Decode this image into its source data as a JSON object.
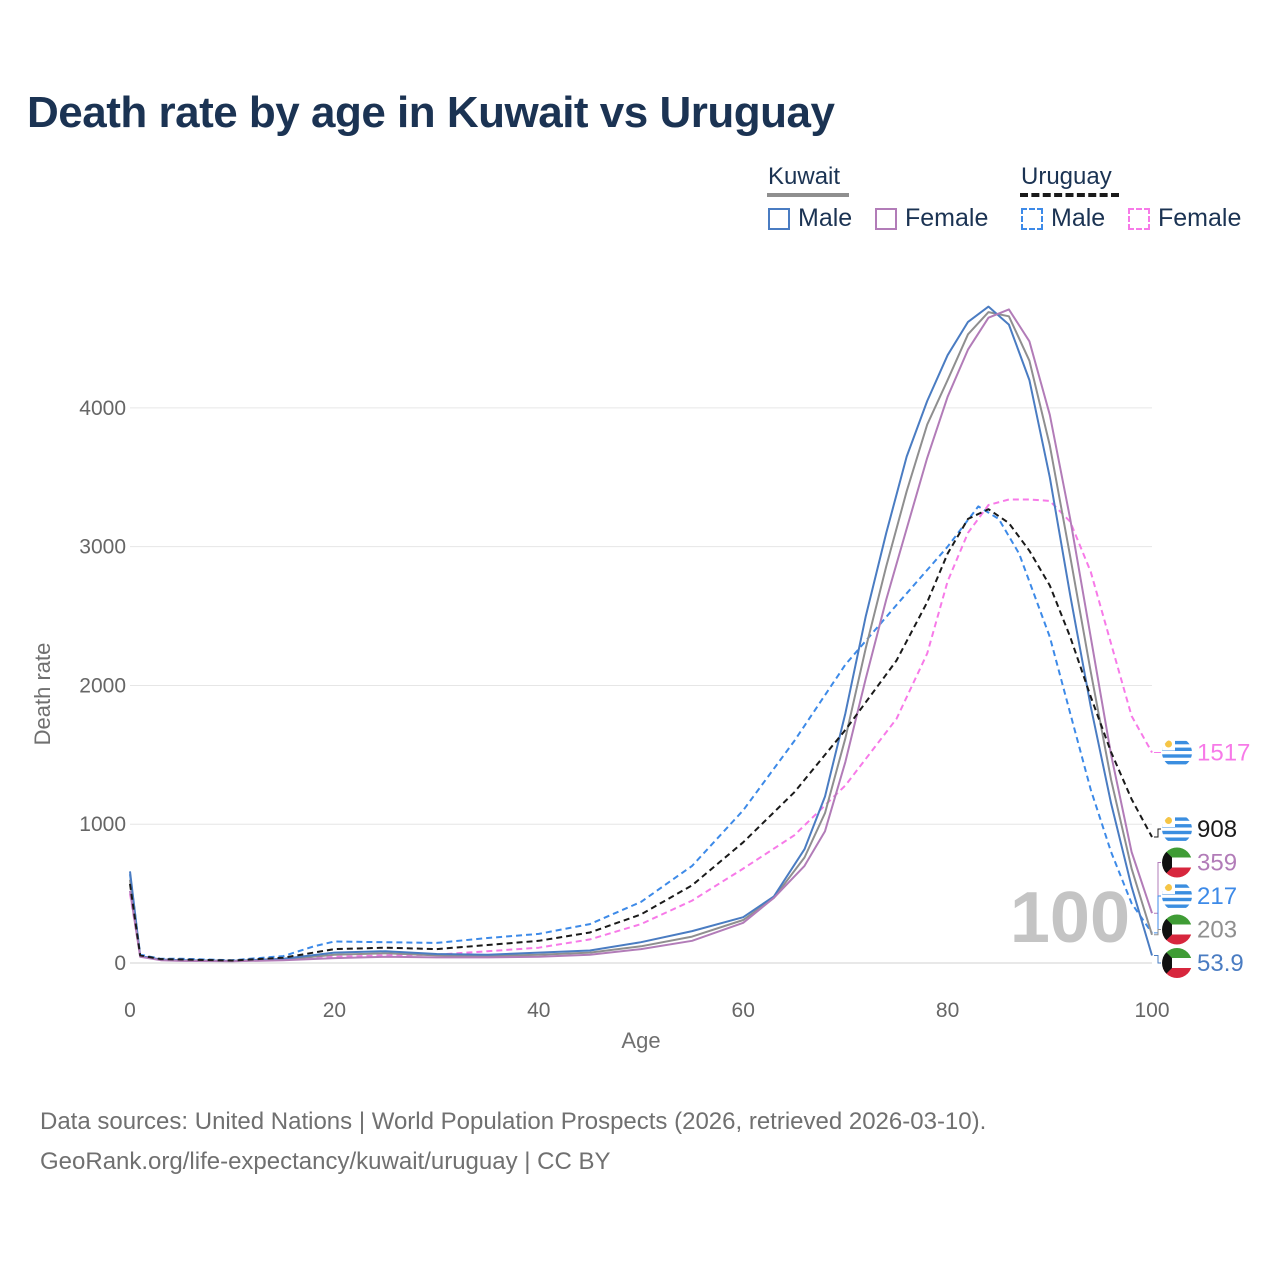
{
  "title": "Death rate by age in Kuwait vs Uruguay",
  "legend": {
    "groups": [
      {
        "name": "Kuwait",
        "line_style": "solid",
        "line_color": "#8f8f8f"
      },
      {
        "name": "Uruguay",
        "line_style": "dashed",
        "line_color": "#1a1a1a"
      }
    ],
    "items": [
      {
        "label": "Male",
        "group": "Kuwait",
        "color": "#4a7cc2",
        "style": "solid"
      },
      {
        "label": "Female",
        "group": "Kuwait",
        "color": "#b27cb8",
        "style": "solid"
      },
      {
        "label": "Male",
        "group": "Uruguay",
        "color": "#3d8ae8",
        "style": "dashed"
      },
      {
        "label": "Female",
        "group": "Uruguay",
        "color": "#f77ae8",
        "style": "dashed"
      }
    ]
  },
  "footer": {
    "line1": "Data sources: United Nations | World Population Prospects (2026, retrieved 2026-03-10).",
    "line2": "GeoRank.org/life-expectancy/kuwait/uruguay | CC BY"
  },
  "chart_data": {
    "type": "line",
    "title": "Death rate by age in Kuwait vs Uruguay",
    "xlabel": "Age",
    "ylabel": "Death rate",
    "xlim": [
      0,
      100
    ],
    "ylim": [
      0,
      4900
    ],
    "xticks": [
      0,
      20,
      40,
      60,
      80,
      100
    ],
    "yticks": [
      0,
      1000,
      2000,
      3000,
      4000
    ],
    "ytick_labels": [
      "0",
      "1000",
      "2000",
      "3000",
      "4000"
    ],
    "grid": true,
    "watermark": "100",
    "series": [
      {
        "name": "Kuwait Male",
        "country": "Kuwait",
        "sex": "Male",
        "color": "#4a7cc2",
        "style": "solid",
        "end_label": "53.9",
        "points": [
          [
            0,
            660
          ],
          [
            1,
            50
          ],
          [
            3,
            25
          ],
          [
            5,
            20
          ],
          [
            10,
            15
          ],
          [
            15,
            30
          ],
          [
            20,
            75
          ],
          [
            25,
            85
          ],
          [
            30,
            65
          ],
          [
            35,
            60
          ],
          [
            40,
            75
          ],
          [
            45,
            90
          ],
          [
            50,
            150
          ],
          [
            55,
            230
          ],
          [
            60,
            330
          ],
          [
            63,
            480
          ],
          [
            66,
            820
          ],
          [
            68,
            1200
          ],
          [
            70,
            1800
          ],
          [
            72,
            2500
          ],
          [
            74,
            3100
          ],
          [
            76,
            3650
          ],
          [
            78,
            4050
          ],
          [
            80,
            4380
          ],
          [
            82,
            4620
          ],
          [
            84,
            4730
          ],
          [
            86,
            4600
          ],
          [
            88,
            4200
          ],
          [
            90,
            3500
          ],
          [
            92,
            2650
          ],
          [
            94,
            1850
          ],
          [
            96,
            1150
          ],
          [
            98,
            550
          ],
          [
            100,
            54
          ]
        ]
      },
      {
        "name": "Kuwait Female",
        "country": "Kuwait",
        "sex": "Female",
        "color": "#b27cb8",
        "style": "solid",
        "end_label": "359",
        "points": [
          [
            0,
            520
          ],
          [
            1,
            45
          ],
          [
            3,
            20
          ],
          [
            5,
            15
          ],
          [
            10,
            12
          ],
          [
            15,
            20
          ],
          [
            20,
            35
          ],
          [
            25,
            45
          ],
          [
            30,
            40
          ],
          [
            35,
            40
          ],
          [
            40,
            45
          ],
          [
            45,
            60
          ],
          [
            50,
            100
          ],
          [
            55,
            160
          ],
          [
            60,
            290
          ],
          [
            63,
            470
          ],
          [
            66,
            700
          ],
          [
            68,
            950
          ],
          [
            70,
            1450
          ],
          [
            72,
            2050
          ],
          [
            74,
            2620
          ],
          [
            76,
            3130
          ],
          [
            78,
            3640
          ],
          [
            80,
            4080
          ],
          [
            82,
            4420
          ],
          [
            84,
            4650
          ],
          [
            86,
            4710
          ],
          [
            88,
            4480
          ],
          [
            90,
            3950
          ],
          [
            92,
            3200
          ],
          [
            94,
            2350
          ],
          [
            96,
            1500
          ],
          [
            98,
            800
          ],
          [
            100,
            359
          ]
        ]
      },
      {
        "name": "Uruguay Male",
        "country": "Uruguay",
        "sex": "Male",
        "color": "#3d8ae8",
        "style": "dashed",
        "end_label": "217",
        "points": [
          [
            0,
            640
          ],
          [
            1,
            60
          ],
          [
            3,
            30
          ],
          [
            5,
            30
          ],
          [
            10,
            20
          ],
          [
            15,
            50
          ],
          [
            18,
            120
          ],
          [
            20,
            155
          ],
          [
            25,
            150
          ],
          [
            30,
            145
          ],
          [
            35,
            180
          ],
          [
            40,
            210
          ],
          [
            45,
            280
          ],
          [
            50,
            440
          ],
          [
            55,
            700
          ],
          [
            60,
            1100
          ],
          [
            65,
            1600
          ],
          [
            70,
            2150
          ],
          [
            75,
            2580
          ],
          [
            80,
            3000
          ],
          [
            83,
            3290
          ],
          [
            85,
            3200
          ],
          [
            87,
            2950
          ],
          [
            90,
            2350
          ],
          [
            92,
            1800
          ],
          [
            94,
            1250
          ],
          [
            96,
            800
          ],
          [
            98,
            430
          ],
          [
            100,
            217
          ]
        ]
      },
      {
        "name": "Uruguay Female",
        "country": "Uruguay",
        "sex": "Female",
        "color": "#f77ae8",
        "style": "dashed",
        "end_label": "1517",
        "points": [
          [
            0,
            500
          ],
          [
            1,
            50
          ],
          [
            3,
            25
          ],
          [
            5,
            20
          ],
          [
            10,
            15
          ],
          [
            15,
            25
          ],
          [
            20,
            45
          ],
          [
            25,
            55
          ],
          [
            30,
            60
          ],
          [
            35,
            85
          ],
          [
            40,
            110
          ],
          [
            45,
            170
          ],
          [
            50,
            280
          ],
          [
            55,
            450
          ],
          [
            60,
            680
          ],
          [
            65,
            920
          ],
          [
            70,
            1280
          ],
          [
            75,
            1760
          ],
          [
            78,
            2230
          ],
          [
            80,
            2750
          ],
          [
            82,
            3100
          ],
          [
            84,
            3300
          ],
          [
            86,
            3340
          ],
          [
            88,
            3340
          ],
          [
            90,
            3330
          ],
          [
            92,
            3180
          ],
          [
            94,
            2820
          ],
          [
            96,
            2300
          ],
          [
            98,
            1780
          ],
          [
            100,
            1517
          ]
        ]
      },
      {
        "name": "Kuwait Both",
        "country": "Kuwait",
        "sex": "Both",
        "color": "#8f8f8f",
        "style": "solid",
        "end_label": "203",
        "points": [
          [
            0,
            600
          ],
          [
            1,
            48
          ],
          [
            3,
            22
          ],
          [
            5,
            18
          ],
          [
            10,
            14
          ],
          [
            15,
            25
          ],
          [
            20,
            60
          ],
          [
            25,
            70
          ],
          [
            30,
            55
          ],
          [
            35,
            50
          ],
          [
            40,
            60
          ],
          [
            45,
            75
          ],
          [
            50,
            120
          ],
          [
            55,
            190
          ],
          [
            60,
            310
          ],
          [
            63,
            470
          ],
          [
            66,
            760
          ],
          [
            68,
            1080
          ],
          [
            70,
            1620
          ],
          [
            72,
            2270
          ],
          [
            74,
            2860
          ],
          [
            76,
            3400
          ],
          [
            78,
            3880
          ],
          [
            80,
            4200
          ],
          [
            82,
            4530
          ],
          [
            84,
            4690
          ],
          [
            86,
            4660
          ],
          [
            88,
            4340
          ],
          [
            90,
            3730
          ],
          [
            92,
            2930
          ],
          [
            94,
            2100
          ],
          [
            96,
            1320
          ],
          [
            98,
            680
          ],
          [
            100,
            203
          ]
        ]
      },
      {
        "name": "Uruguay Both",
        "country": "Uruguay",
        "sex": "Both",
        "color": "#1a1a1a",
        "style": "dashed",
        "end_label": "908",
        "points": [
          [
            0,
            570
          ],
          [
            1,
            55
          ],
          [
            3,
            28
          ],
          [
            5,
            25
          ],
          [
            10,
            18
          ],
          [
            15,
            38
          ],
          [
            20,
            100
          ],
          [
            25,
            110
          ],
          [
            30,
            100
          ],
          [
            35,
            130
          ],
          [
            40,
            160
          ],
          [
            45,
            220
          ],
          [
            50,
            350
          ],
          [
            55,
            560
          ],
          [
            60,
            870
          ],
          [
            65,
            1230
          ],
          [
            70,
            1680
          ],
          [
            75,
            2180
          ],
          [
            78,
            2600
          ],
          [
            80,
            2950
          ],
          [
            82,
            3200
          ],
          [
            84,
            3270
          ],
          [
            86,
            3170
          ],
          [
            88,
            2970
          ],
          [
            90,
            2720
          ],
          [
            92,
            2350
          ],
          [
            94,
            1920
          ],
          [
            96,
            1520
          ],
          [
            98,
            1180
          ],
          [
            100,
            908
          ]
        ]
      }
    ]
  }
}
